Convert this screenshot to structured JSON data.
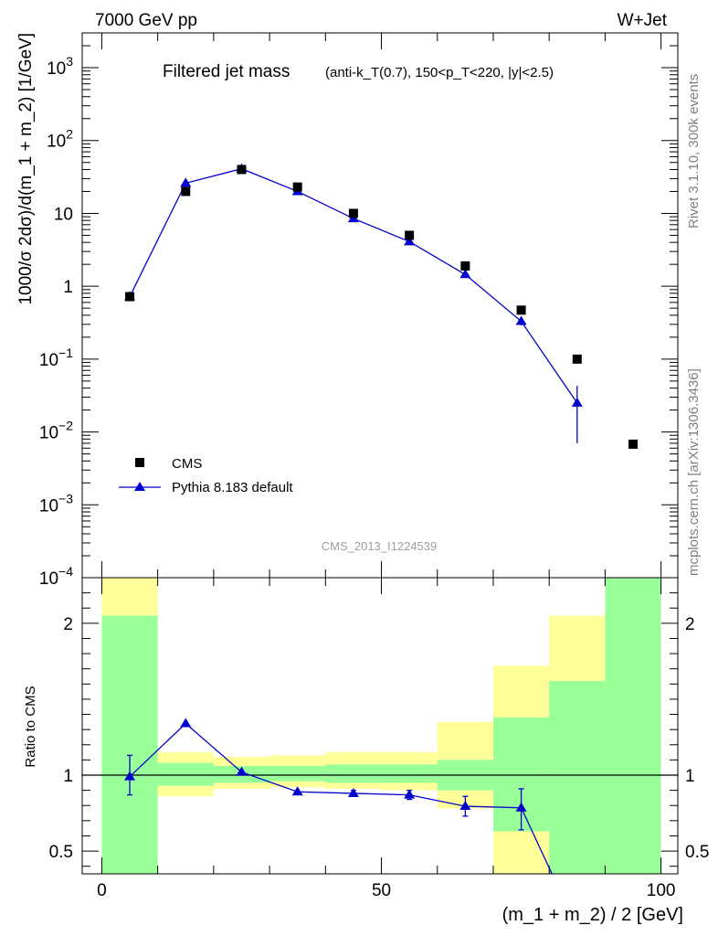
{
  "header": {
    "energy": "7000 GeV pp",
    "process": "W+Jet",
    "rivet": "Rivet 3.1.10,  300k events",
    "source": "mcplots.cern.ch [arXiv:1306.3436]",
    "analysis": "CMS_2013_I1224539"
  },
  "chart_data": [
    {
      "type": "scatter",
      "title": "Filtered jet mass",
      "subtitle": "(anti-k_T(0.7), 150<p_T<220, |y|<2.5)",
      "ylabel": "1000/σ 2dσ)/d(m_1 + m_2) [1/GeV]",
      "yscale": "log",
      "ylim": [
        0.0001,
        3000
      ],
      "xlim": [
        -3.5,
        103
      ],
      "legend_position": "bottom-left",
      "ytick_labels": [
        {
          "v": 0.0001,
          "base": "10",
          "exp": "−4"
        },
        {
          "v": 0.001,
          "base": "10",
          "exp": "−3"
        },
        {
          "v": 0.01,
          "base": "10",
          "exp": "−2"
        },
        {
          "v": 0.1,
          "base": "10",
          "exp": "−1"
        },
        {
          "v": 1,
          "base": "1",
          "exp": ""
        },
        {
          "v": 10,
          "base": "10",
          "exp": ""
        },
        {
          "v": 100,
          "base": "10",
          "exp": "2"
        },
        {
          "v": 1000,
          "base": "10",
          "exp": "3"
        }
      ],
      "series": [
        {
          "name": "CMS",
          "marker": "square",
          "color": "#000000",
          "x": [
            5,
            15,
            25,
            35,
            45,
            55,
            65,
            75,
            85,
            95
          ],
          "y": [
            0.72,
            20,
            40,
            23,
            10,
            5,
            1.9,
            0.47,
            0.1,
            0.0068
          ]
        },
        {
          "name": "Pythia 8.183 default",
          "marker": "triangle",
          "color": "#0000cc",
          "x": [
            5,
            15,
            25,
            35,
            45,
            55,
            65,
            75,
            85
          ],
          "y": [
            0.72,
            26,
            41,
            20,
            8.5,
            4.1,
            1.45,
            0.33,
            0.025
          ],
          "err_low": [
            0.72,
            26,
            41,
            20,
            8.5,
            4.1,
            1.45,
            0.29,
            0.007
          ],
          "err_high": [
            0.72,
            26,
            41,
            20,
            8.5,
            4.1,
            1.45,
            0.38,
            0.043
          ]
        }
      ]
    },
    {
      "type": "line",
      "xlabel": "(m_1 + m_2) / 2 [GeV]",
      "ylabel": "Ratio to CMS",
      "ylim": [
        0.35,
        2.3
      ],
      "xlim": [
        -3.5,
        103
      ],
      "xticks": [
        0,
        50,
        100
      ],
      "yticks": [
        0.5,
        1,
        2
      ],
      "yticks_labels": [
        "0.5",
        "1",
        "2"
      ],
      "reference": 1,
      "bands": {
        "bin_edges": [
          0,
          10,
          20,
          30,
          40,
          50,
          60,
          70,
          80,
          90,
          100
        ],
        "green_low": [
          0.35,
          0.93,
          0.95,
          0.96,
          0.95,
          0.95,
          0.9,
          0.63,
          0.35,
          0.35
        ],
        "green_high": [
          2.05,
          1.08,
          1.06,
          1.06,
          1.07,
          1.07,
          1.1,
          1.38,
          1.62,
          2.3
        ],
        "yellow_low": [
          0.35,
          0.86,
          0.91,
          0.92,
          0.91,
          0.9,
          0.78,
          0.35,
          0.35,
          0.35
        ],
        "yellow_high": [
          2.3,
          1.15,
          1.12,
          1.13,
          1.15,
          1.15,
          1.35,
          1.72,
          2.05,
          2.3
        ]
      },
      "series": [
        {
          "name": "Pythia 8.183 default",
          "color": "#0000cc",
          "x": [
            5,
            15,
            25,
            35,
            45,
            55,
            65,
            75
          ],
          "y": [
            0.99,
            1.34,
            1.02,
            0.89,
            0.88,
            0.87,
            0.795,
            0.785
          ],
          "err_low": [
            0.87,
            1.34,
            1.02,
            0.89,
            0.86,
            0.84,
            0.73,
            0.64
          ],
          "err_high": [
            1.13,
            1.34,
            1.02,
            0.89,
            0.9,
            0.9,
            0.86,
            0.91
          ],
          "tail_x": 80.5,
          "tail_y": 0.35
        }
      ]
    }
  ]
}
